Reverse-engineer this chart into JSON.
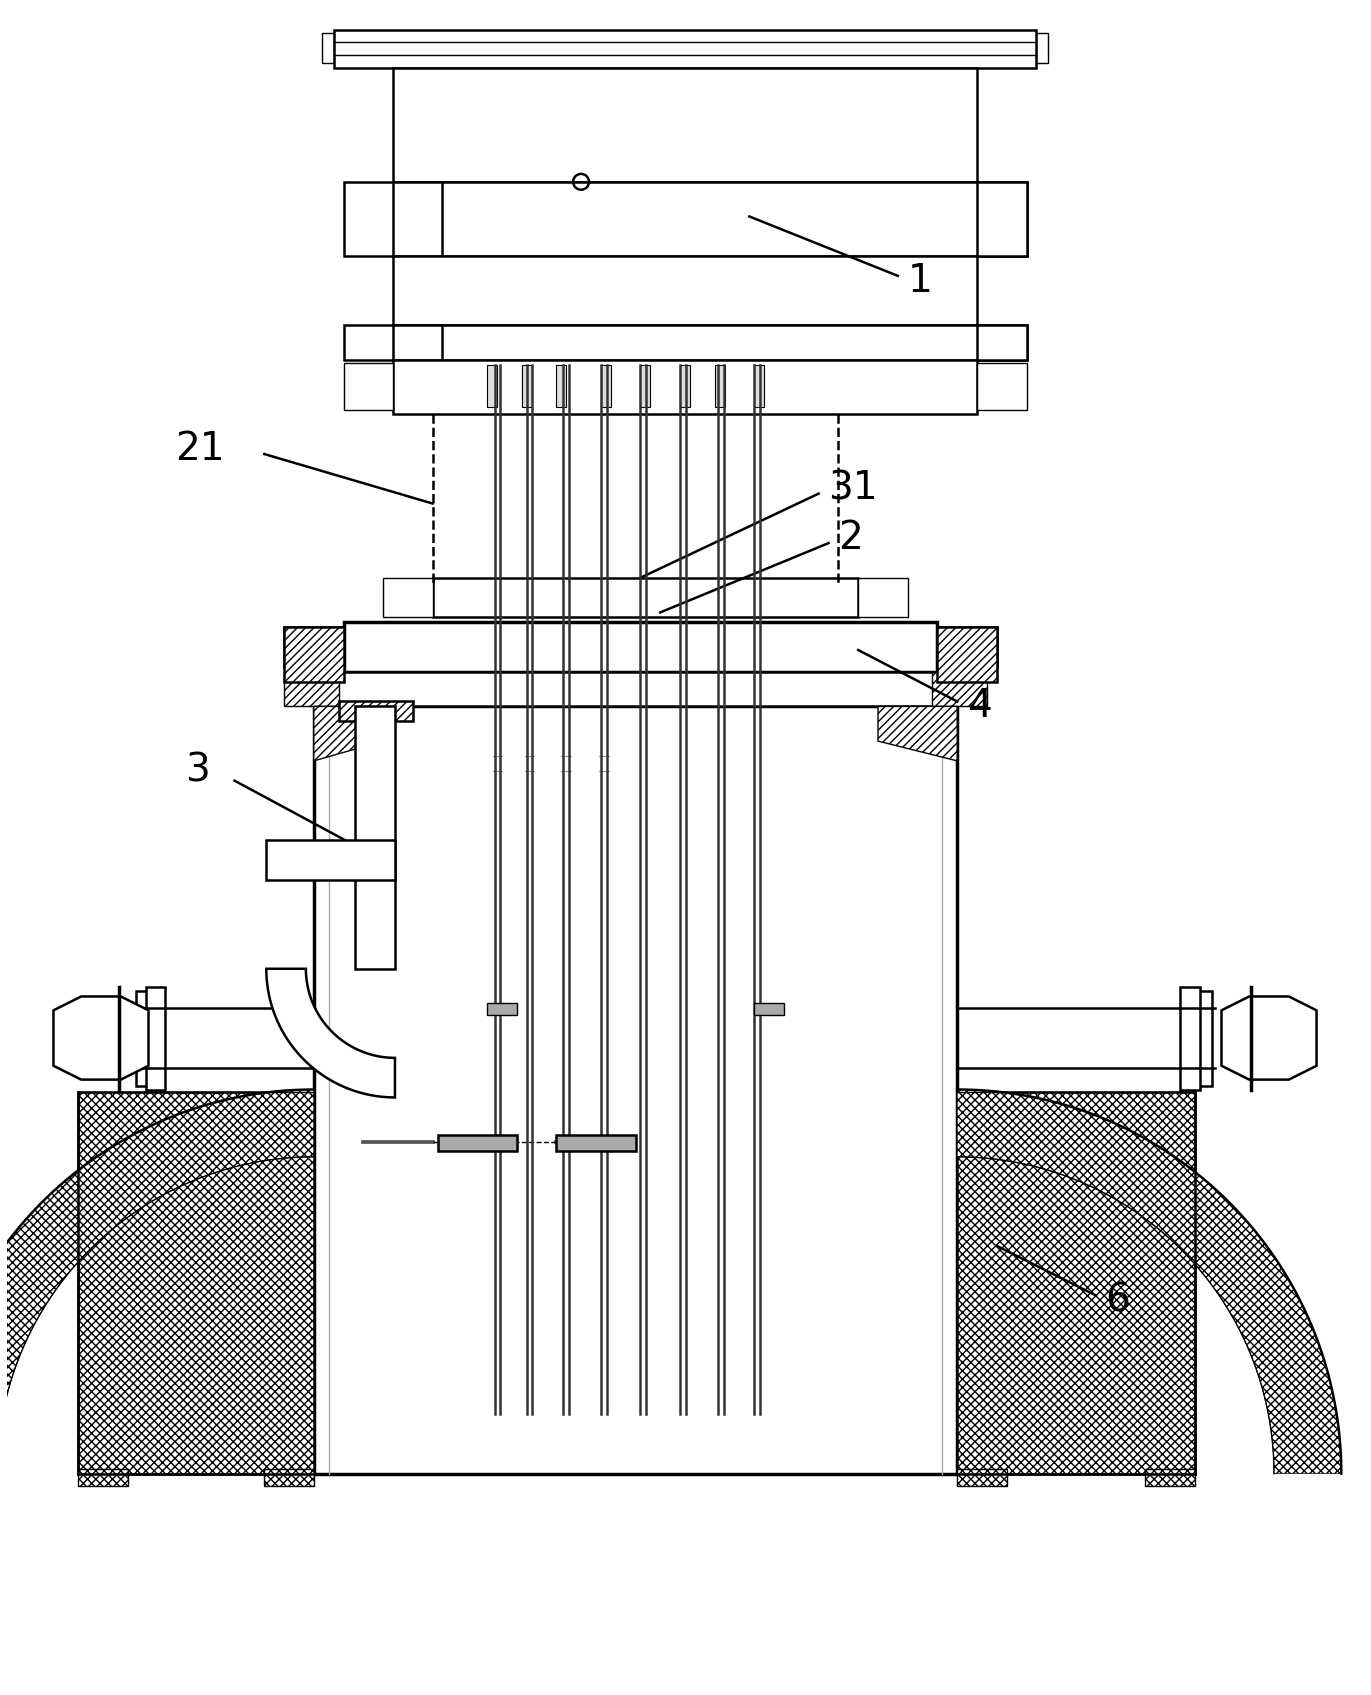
{
  "fig_width": 13.71,
  "fig_height": 16.95,
  "dpi": 100,
  "bg_color": "#ffffff",
  "lc": "#000000",
  "lw": 1.8,
  "lw_thin": 1.0,
  "lw_thick": 2.5
}
